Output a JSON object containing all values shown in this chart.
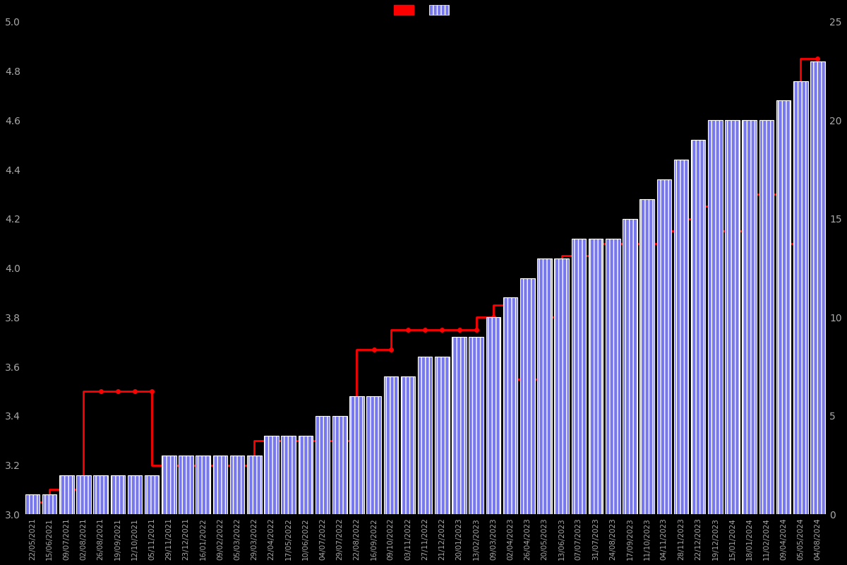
{
  "dates": [
    "22/05/2021",
    "15/06/2021",
    "09/07/2021",
    "02/08/2021",
    "26/08/2021",
    "19/09/2021",
    "12/10/2021",
    "05/11/2021",
    "29/11/2021",
    "23/12/2021",
    "16/01/2022",
    "09/02/2022",
    "05/03/2022",
    "29/03/2022",
    "22/04/2022",
    "17/05/2022",
    "10/06/2022",
    "04/07/2022",
    "29/07/2022",
    "22/08/2022",
    "16/09/2022",
    "09/10/2022",
    "03/11/2022",
    "27/11/2022",
    "21/12/2022",
    "20/01/2023",
    "13/02/2023",
    "09/03/2023",
    "02/04/2023",
    "26/04/2023",
    "20/05/2023",
    "13/06/2023",
    "07/07/2023",
    "31/07/2023",
    "24/08/2023",
    "17/09/2023",
    "11/10/2023",
    "04/11/2023",
    "28/11/2023",
    "22/12/2023",
    "19/12/2023",
    "15/01/2024",
    "18/01/2024",
    "11/02/2024",
    "09/04/2024",
    "05/05/2024",
    "04/08/2024"
  ],
  "bar_values": [
    1,
    1,
    2,
    2,
    2,
    2,
    2,
    2,
    3,
    3,
    3,
    3,
    3,
    3,
    4,
    4,
    4,
    5,
    5,
    6,
    6,
    7,
    7,
    8,
    8,
    9,
    9,
    10,
    11,
    12,
    13,
    13,
    14,
    14,
    14,
    15,
    16,
    17,
    18,
    19,
    20,
    20,
    20,
    20,
    21,
    22,
    23
  ],
  "rating_values": [
    3.05,
    3.05,
    3.1,
    3.1,
    3.5,
    3.5,
    3.5,
    3.5,
    3.2,
    3.2,
    3.2,
    3.2,
    3.2,
    3.2,
    3.3,
    3.3,
    3.3,
    3.3,
    3.3,
    3.3,
    3.67,
    3.67,
    3.75,
    3.75,
    3.75,
    3.75,
    3.75,
    3.8,
    3.85,
    3.55,
    3.55,
    3.8,
    4.05,
    4.05,
    4.1,
    4.1,
    4.1,
    4.1,
    4.15,
    4.2,
    4.25,
    4.15,
    4.15,
    4.3,
    4.3,
    4.1,
    4.85
  ],
  "bar_color": "#6666dd",
  "bar_face_color": "#7777ee",
  "bar_edge_color": "#ffffff",
  "line_color": "#ff0000",
  "background_color": "#000000",
  "text_color": "#aaaaaa",
  "ylim_left": [
    3.0,
    5.0
  ],
  "ylim_right": [
    0,
    25
  ],
  "yticks_left": [
    3.0,
    3.2,
    3.4,
    3.6,
    3.8,
    4.0,
    4.2,
    4.4,
    4.6,
    4.8,
    5.0
  ],
  "yticks_right": [
    0,
    5,
    10,
    15,
    20,
    25
  ]
}
